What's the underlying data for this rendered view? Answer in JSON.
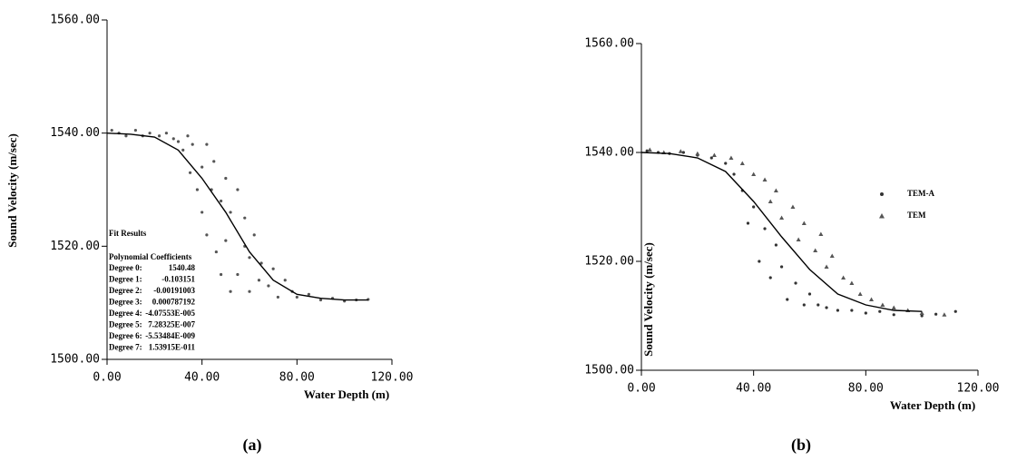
{
  "chart_data": [
    {
      "type": "scatter",
      "caption": "(a)",
      "xlabel": "Water Depth (m)",
      "ylabel": "Sound Velocity (m/sec)",
      "xlim": [
        0,
        120
      ],
      "ylim": [
        1500,
        1560
      ],
      "xticks": [
        {
          "value": 0,
          "label": "0.00"
        },
        {
          "value": 40,
          "label": "40.00"
        },
        {
          "value": 80,
          "label": "80.00"
        },
        {
          "value": 120,
          "label": "120.00"
        }
      ],
      "yticks": [
        {
          "value": 1500,
          "label": "1500.00"
        },
        {
          "value": 1520,
          "label": "1520.00"
        },
        {
          "value": 1540,
          "label": "1540.00"
        },
        {
          "value": 1560,
          "label": "1560.00"
        }
      ],
      "series": [
        {
          "type": "scatter",
          "marker": "dot",
          "color": "#555555",
          "x": [
            2,
            5,
            8,
            12,
            15,
            18,
            22,
            25,
            28,
            30,
            32,
            34,
            35,
            36,
            38,
            40,
            40,
            42,
            42,
            44,
            45,
            46,
            48,
            48,
            50,
            50,
            52,
            52,
            55,
            55,
            58,
            58,
            60,
            60,
            62,
            64,
            65,
            68,
            70,
            72,
            75,
            78,
            80,
            85,
            90,
            95,
            100,
            105,
            110
          ],
          "values": [
            1540.5,
            1540,
            1539.5,
            1540.5,
            1539.5,
            1540,
            1539.5,
            1540,
            1539,
            1538.5,
            1537,
            1539.5,
            1533,
            1538,
            1530,
            1534,
            1526,
            1538,
            1522,
            1530,
            1535,
            1519,
            1528,
            1515,
            1532,
            1521,
            1512,
            1526,
            1530,
            1515,
            1520,
            1525,
            1512,
            1518,
            1522,
            1514,
            1517,
            1513,
            1516,
            1511,
            1514,
            1512,
            1511,
            1511.5,
            1510.5,
            1510.8,
            1510.3,
            1510.5,
            1510.6
          ]
        },
        {
          "type": "line",
          "color": "#000000",
          "x": [
            0,
            10,
            20,
            30,
            40,
            50,
            60,
            70,
            80,
            90,
            100,
            110
          ],
          "values": [
            1540,
            1539.8,
            1539.3,
            1537,
            1532,
            1526,
            1519,
            1514,
            1511.5,
            1510.8,
            1510.5,
            1510.5
          ]
        }
      ],
      "fit_results": {
        "title": "Fit Results",
        "subtitle": "Polynomial Coefficients",
        "rows": [
          [
            "Degree 0:",
            "1540.48"
          ],
          [
            "Degree 1:",
            "-0.103151"
          ],
          [
            "Degree 2:",
            "-0.00191003"
          ],
          [
            "Degree 3:",
            "0.000787192"
          ],
          [
            "Degree 4:",
            "-4.07553E-005"
          ],
          [
            "Degree 5:",
            "7.28325E-007"
          ],
          [
            "Degree 6:",
            "-5.53484E-009"
          ],
          [
            "Degree 7:",
            "1.53915E-011"
          ]
        ]
      }
    },
    {
      "type": "scatter",
      "caption": "(b)",
      "xlabel": "Water Depth (m)",
      "ylabel": "Sound Velocity (m/sec)",
      "xlim": [
        0,
        120
      ],
      "ylim": [
        1500,
        1560
      ],
      "xticks": [
        {
          "value": 0,
          "label": "0.00"
        },
        {
          "value": 40,
          "label": "40.00"
        },
        {
          "value": 80,
          "label": "80.00"
        },
        {
          "value": 120,
          "label": "120.00"
        }
      ],
      "yticks": [
        {
          "value": 1500,
          "label": "1500.00"
        },
        {
          "value": 1520,
          "label": "1520.00"
        },
        {
          "value": 1540,
          "label": "1540.00"
        },
        {
          "value": 1560,
          "label": "1560.00"
        }
      ],
      "legend": "right",
      "series": [
        {
          "type": "scatter",
          "name": "TEM-A",
          "marker": "dot",
          "color": "#333333",
          "x": [
            2,
            6,
            10,
            15,
            20,
            25,
            30,
            33,
            36,
            38,
            40,
            42,
            44,
            46,
            48,
            50,
            52,
            55,
            58,
            60,
            63,
            66,
            70,
            75,
            80,
            85,
            90,
            100,
            105,
            112
          ],
          "values": [
            1540.3,
            1540,
            1539.8,
            1540,
            1539.5,
            1539,
            1538,
            1536,
            1533,
            1527,
            1530,
            1520,
            1526,
            1517,
            1523,
            1519,
            1513,
            1516,
            1512,
            1514,
            1512,
            1511.5,
            1511,
            1511,
            1510.5,
            1510.8,
            1510.2,
            1510,
            1510.3,
            1510.8
          ]
        },
        {
          "type": "scatter",
          "name": "TEM",
          "marker": "triangle",
          "color": "#555555",
          "x": [
            3,
            8,
            14,
            20,
            26,
            32,
            36,
            40,
            44,
            46,
            48,
            50,
            54,
            56,
            58,
            62,
            64,
            66,
            68,
            72,
            75,
            78,
            82,
            86,
            90,
            95,
            100,
            108
          ],
          "values": [
            1540.5,
            1540,
            1540.2,
            1539.8,
            1539.5,
            1539,
            1538,
            1536,
            1535,
            1531,
            1533,
            1528,
            1530,
            1524,
            1527,
            1522,
            1525,
            1519,
            1521,
            1517,
            1516,
            1514,
            1513,
            1512,
            1511.5,
            1511,
            1510.5,
            1510.2
          ]
        },
        {
          "type": "line",
          "color": "#000000",
          "x": [
            0,
            10,
            20,
            30,
            40,
            50,
            60,
            70,
            80,
            90,
            100
          ],
          "values": [
            1540,
            1539.8,
            1539,
            1536.5,
            1531,
            1524.5,
            1518.5,
            1514,
            1512,
            1511,
            1510.8
          ]
        }
      ]
    }
  ]
}
